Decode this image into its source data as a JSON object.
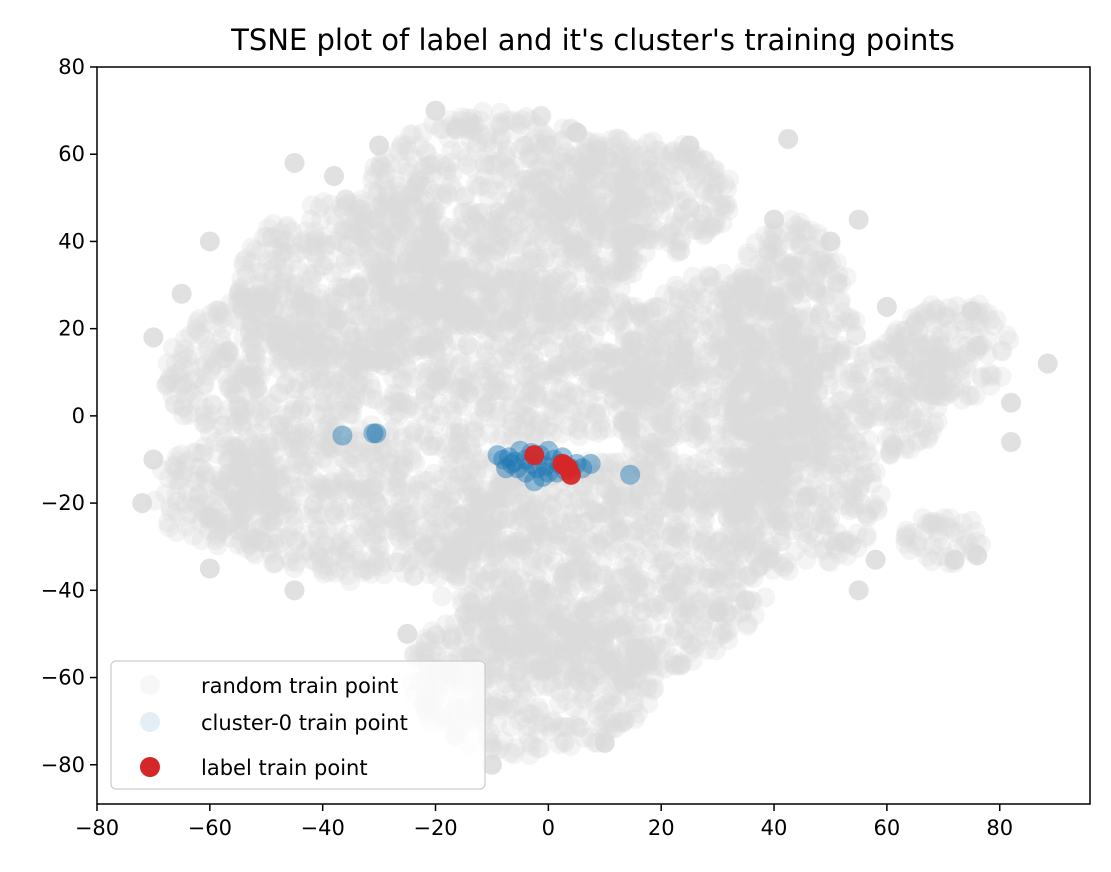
{
  "chart_data": {
    "type": "scatter",
    "title": "TSNE plot of label and it's cluster's training points",
    "xlabel": "",
    "ylabel": "",
    "xlim": [
      -80,
      96
    ],
    "ylim": [
      -89,
      80
    ],
    "x_ticks": [
      -80,
      -60,
      -40,
      -20,
      0,
      20,
      40,
      60,
      80
    ],
    "y_ticks": [
      -80,
      -60,
      -40,
      -20,
      0,
      20,
      40,
      60,
      80
    ],
    "x_tick_labels": [
      "−80",
      "−60",
      "−40",
      "−20",
      "0",
      "20",
      "40",
      "60",
      "80"
    ],
    "y_tick_labels": [
      "−80",
      "−60",
      "−40",
      "−20",
      "0",
      "20",
      "40",
      "60",
      "80"
    ],
    "grid": false,
    "legend_position": "lower-left",
    "legend": [
      {
        "label": "random train point",
        "color": "#d9d9d9"
      },
      {
        "label": "cluster-0 train point",
        "color": "#1f77b4"
      },
      {
        "label": "label train point",
        "color": "#d62728"
      }
    ],
    "series": [
      {
        "name": "random train point",
        "color": "#d9d9d9",
        "opacity": 0.3,
        "regions": [
          {
            "cx": -8,
            "cy": 45,
            "rx": 27,
            "ry": 25
          },
          {
            "cx": 15,
            "cy": 50,
            "rx": 18,
            "ry": 14
          },
          {
            "cx": -35,
            "cy": 30,
            "rx": 20,
            "ry": 20
          },
          {
            "cx": -50,
            "cy": 10,
            "rx": 18,
            "ry": 18
          },
          {
            "cx": -58,
            "cy": -18,
            "rx": 12,
            "ry": 12
          },
          {
            "cx": -32,
            "cy": -20,
            "rx": 28,
            "ry": 18
          },
          {
            "cx": -5,
            "cy": 12,
            "rx": 30,
            "ry": 18
          },
          {
            "cx": 10,
            "cy": -35,
            "rx": 30,
            "ry": 25
          },
          {
            "cx": -3,
            "cy": -60,
            "rx": 22,
            "ry": 18
          },
          {
            "cx": 30,
            "cy": 5,
            "rx": 18,
            "ry": 28
          },
          {
            "cx": 43,
            "cy": 15,
            "rx": 12,
            "ry": 30
          },
          {
            "cx": 45,
            "cy": -18,
            "rx": 14,
            "ry": 18
          },
          {
            "cx": 62,
            "cy": 5,
            "rx": 8,
            "ry": 15
          },
          {
            "cx": 72,
            "cy": 15,
            "rx": 10,
            "ry": 12
          },
          {
            "cx": 70,
            "cy": -28,
            "rx": 7,
            "ry": 6
          }
        ],
        "points": [
          [
            42.5,
            63.5
          ],
          [
            88.5,
            12
          ],
          [
            82,
            -6
          ],
          [
            76,
            -32
          ],
          [
            72,
            -33
          ],
          [
            58,
            -33
          ],
          [
            55,
            -40
          ],
          [
            -30,
            62
          ],
          [
            -45,
            58
          ],
          [
            -70,
            18
          ],
          [
            -72,
            -20
          ],
          [
            -70,
            -10
          ],
          [
            82,
            3
          ],
          [
            60,
            25
          ],
          [
            75,
            24
          ],
          [
            -20,
            70
          ],
          [
            5,
            65
          ],
          [
            25,
            62
          ],
          [
            -60,
            40
          ],
          [
            -65,
            28
          ],
          [
            -38,
            55
          ],
          [
            10,
            -75
          ],
          [
            -10,
            -80
          ],
          [
            30,
            -45
          ],
          [
            -25,
            -50
          ],
          [
            -60,
            -35
          ],
          [
            -45,
            -40
          ],
          [
            50,
            40
          ],
          [
            55,
            45
          ],
          [
            40,
            45
          ]
        ]
      },
      {
        "name": "cluster-0 train point",
        "color": "#1f77b4",
        "opacity": 0.3,
        "points": [
          [
            -36.5,
            -4.5
          ],
          [
            -30.5,
            -4
          ],
          [
            -31,
            -4
          ],
          [
            14.5,
            -13.5
          ],
          [
            -7,
            -9.5
          ],
          [
            -6.5,
            -11
          ],
          [
            -5.5,
            -12
          ],
          [
            -4,
            -10
          ],
          [
            -3,
            -8.5
          ],
          [
            -1.5,
            -9
          ],
          [
            0,
            -8
          ],
          [
            1,
            -10
          ],
          [
            2,
            -11
          ],
          [
            -2,
            -12
          ],
          [
            0,
            -13
          ],
          [
            -4,
            -13
          ],
          [
            -6,
            -10.5
          ],
          [
            3,
            -12.5
          ],
          [
            4,
            -12
          ],
          [
            5,
            -11
          ],
          [
            1.5,
            -13
          ],
          [
            -1,
            -14
          ],
          [
            -3,
            -11
          ],
          [
            -5,
            -8
          ],
          [
            -8,
            -10
          ],
          [
            -7.5,
            -12
          ],
          [
            -2.5,
            -15
          ],
          [
            -0.5,
            -11.5
          ],
          [
            2.5,
            -9.5
          ],
          [
            -9,
            -9
          ],
          [
            6,
            -12
          ],
          [
            7.5,
            -11
          ]
        ]
      },
      {
        "name": "label train point",
        "color": "#d62728",
        "opacity": 1,
        "points": [
          [
            -2.5,
            -9
          ],
          [
            2.5,
            -11
          ],
          [
            3,
            -11.5
          ],
          [
            3.5,
            -12
          ],
          [
            4,
            -13.5
          ]
        ]
      }
    ]
  }
}
